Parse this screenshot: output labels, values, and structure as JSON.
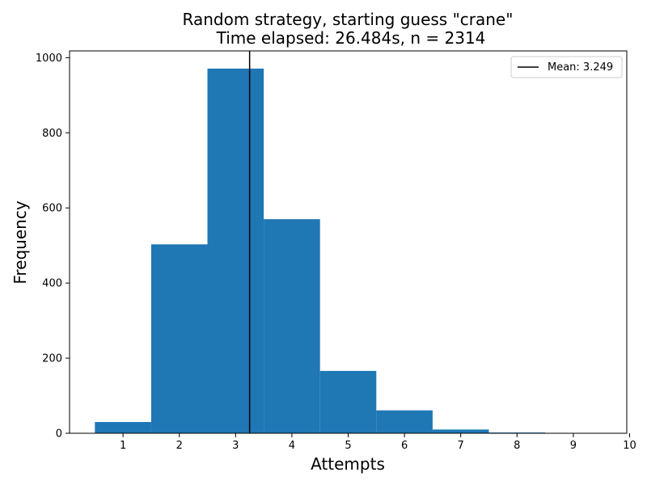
{
  "chart_data": {
    "type": "bar",
    "title_line1": "Random strategy, starting guess \"crane\"",
    "title_line2": "Time elapsed: 26.484s, n = 2314",
    "xlabel": "Attempts",
    "ylabel": "Frequency",
    "xlim": [
      0.05,
      9.95
    ],
    "ylim": [
      0,
      1018
    ],
    "x_ticks": [
      "1",
      "2",
      "3",
      "4",
      "5",
      "6",
      "7",
      "8",
      "9",
      "10"
    ],
    "y_ticks": [
      "0",
      "200",
      "400",
      "600",
      "800",
      "1000"
    ],
    "bins": [
      {
        "start": 0.5,
        "end": 1.5,
        "value": 30
      },
      {
        "start": 1.5,
        "end": 2.5,
        "value": 503
      },
      {
        "start": 2.5,
        "end": 3.5,
        "value": 971
      },
      {
        "start": 3.5,
        "end": 4.5,
        "value": 570
      },
      {
        "start": 4.5,
        "end": 5.5,
        "value": 166
      },
      {
        "start": 5.5,
        "end": 6.5,
        "value": 61
      },
      {
        "start": 6.5,
        "end": 7.5,
        "value": 10
      },
      {
        "start": 7.5,
        "end": 8.5,
        "value": 2
      },
      {
        "start": 8.5,
        "end": 9.5,
        "value": 1
      }
    ],
    "mean": 3.249,
    "legend": {
      "label": "Mean: 3.249",
      "position": "top-right"
    },
    "grid": false,
    "colors": {
      "bar": "#1f77b4",
      "mean_line": "#000000"
    }
  }
}
